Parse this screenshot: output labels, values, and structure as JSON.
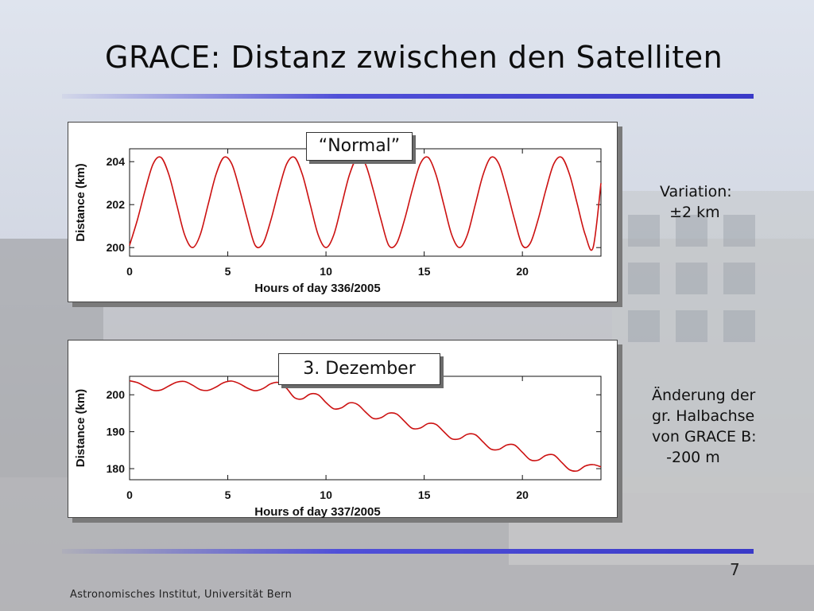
{
  "slide": {
    "title": "GRACE: Distanz zwischen den Satelliten",
    "page_number": "7",
    "footer": "Astronomisches Institut, Universität Bern",
    "notes": {
      "top": "Variation:\n  ±2 km",
      "bottom": "Änderung der\ngr. Halbachse\nvon GRACE B:\n   -200 m"
    },
    "accent_color": "#4444d0",
    "curve_color": "#cc1111"
  },
  "chart_data": [
    {
      "type": "line",
      "label": "“Normal”",
      "xlabel": "Hours of day 336/2005",
      "ylabel": "Distance (km)",
      "xlim": [
        0,
        24
      ],
      "ylim": [
        199.6,
        204.6
      ],
      "xticks": [
        0,
        5,
        10,
        15,
        20
      ],
      "yticks": [
        200,
        202,
        204
      ],
      "grid": false,
      "series": [
        {
          "x": [
            0,
            0.4,
            0.8,
            1.2,
            1.6,
            2.0,
            2.4,
            2.8,
            3.2,
            3.6,
            4.0,
            4.4,
            4.8,
            5.2,
            5.6,
            6.0,
            6.4,
            6.8,
            7.2,
            7.6,
            8.0,
            8.4,
            8.8,
            9.2,
            9.6,
            10.0,
            10.4,
            10.8,
            11.2,
            11.6,
            12.0,
            12.4,
            12.8,
            13.2,
            13.6,
            14.0,
            14.4,
            14.8,
            15.2,
            15.6,
            16.0,
            16.4,
            16.8,
            17.2,
            17.6,
            18.0,
            18.4,
            18.8,
            19.2,
            19.6,
            20.0,
            20.4,
            20.8,
            21.2,
            21.6,
            22.0,
            22.4,
            22.8,
            23.2,
            23.6,
            24.0
          ],
          "y": [
            200.1,
            201.3,
            202.7,
            203.9,
            204.2,
            203.4,
            202.0,
            200.6,
            200.0,
            200.6,
            202.0,
            203.4,
            204.2,
            203.9,
            202.7,
            201.3,
            200.1,
            200.2,
            201.3,
            202.7,
            203.9,
            204.2,
            203.4,
            202.0,
            200.6,
            200.0,
            200.6,
            202.0,
            203.4,
            204.2,
            203.9,
            202.7,
            201.3,
            200.1,
            200.2,
            201.3,
            202.7,
            203.9,
            204.2,
            203.4,
            202.0,
            200.6,
            200.0,
            200.6,
            202.0,
            203.4,
            204.2,
            203.9,
            202.7,
            201.3,
            200.1,
            200.2,
            201.3,
            202.7,
            203.9,
            204.2,
            203.4,
            202.0,
            200.6,
            200.0,
            203.0
          ]
        }
      ]
    },
    {
      "type": "line",
      "label": "3. Dezember",
      "xlabel": "Hours of day 337/2005",
      "ylabel": "Distance (km)",
      "xlim": [
        0,
        24
      ],
      "ylim": [
        177,
        205
      ],
      "xticks": [
        0,
        5,
        10,
        15,
        20
      ],
      "yticks": [
        180,
        190,
        200
      ],
      "grid": false,
      "series": [
        {
          "x": [
            0,
            0.4,
            0.8,
            1.2,
            1.6,
            2.0,
            2.4,
            2.8,
            3.2,
            3.6,
            4.0,
            4.4,
            4.8,
            5.2,
            5.6,
            6.0,
            6.4,
            6.8,
            7.2,
            7.6,
            8.0,
            8.4,
            8.8,
            9.2,
            9.6,
            10.0,
            10.4,
            10.8,
            11.2,
            11.6,
            12.0,
            12.4,
            12.8,
            13.2,
            13.6,
            14.0,
            14.4,
            14.8,
            15.2,
            15.6,
            16.0,
            16.4,
            16.8,
            17.2,
            17.6,
            18.0,
            18.4,
            18.8,
            19.2,
            19.6,
            20.0,
            20.4,
            20.8,
            21.2,
            21.6,
            22.0,
            22.4,
            22.8,
            23.2,
            23.6,
            24.0
          ],
          "y": [
            203.8,
            203.3,
            202.2,
            201.2,
            201.3,
            202.4,
            203.4,
            203.6,
            202.6,
            201.4,
            201.2,
            202.1,
            203.3,
            203.7,
            203.0,
            201.8,
            201.1,
            201.7,
            203.0,
            203.3,
            201.7,
            199.2,
            198.9,
            200.2,
            200.0,
            197.9,
            196.2,
            196.5,
            197.8,
            197.4,
            195.4,
            193.6,
            193.8,
            195.0,
            194.8,
            192.8,
            190.9,
            191.0,
            192.2,
            192.0,
            190.0,
            188.1,
            188.1,
            189.3,
            189.2,
            187.2,
            185.3,
            185.2,
            186.4,
            186.4,
            184.4,
            182.4,
            182.3,
            183.6,
            183.7,
            181.7,
            179.7,
            179.4,
            180.7,
            181.1,
            180.5
          ]
        }
      ]
    }
  ]
}
